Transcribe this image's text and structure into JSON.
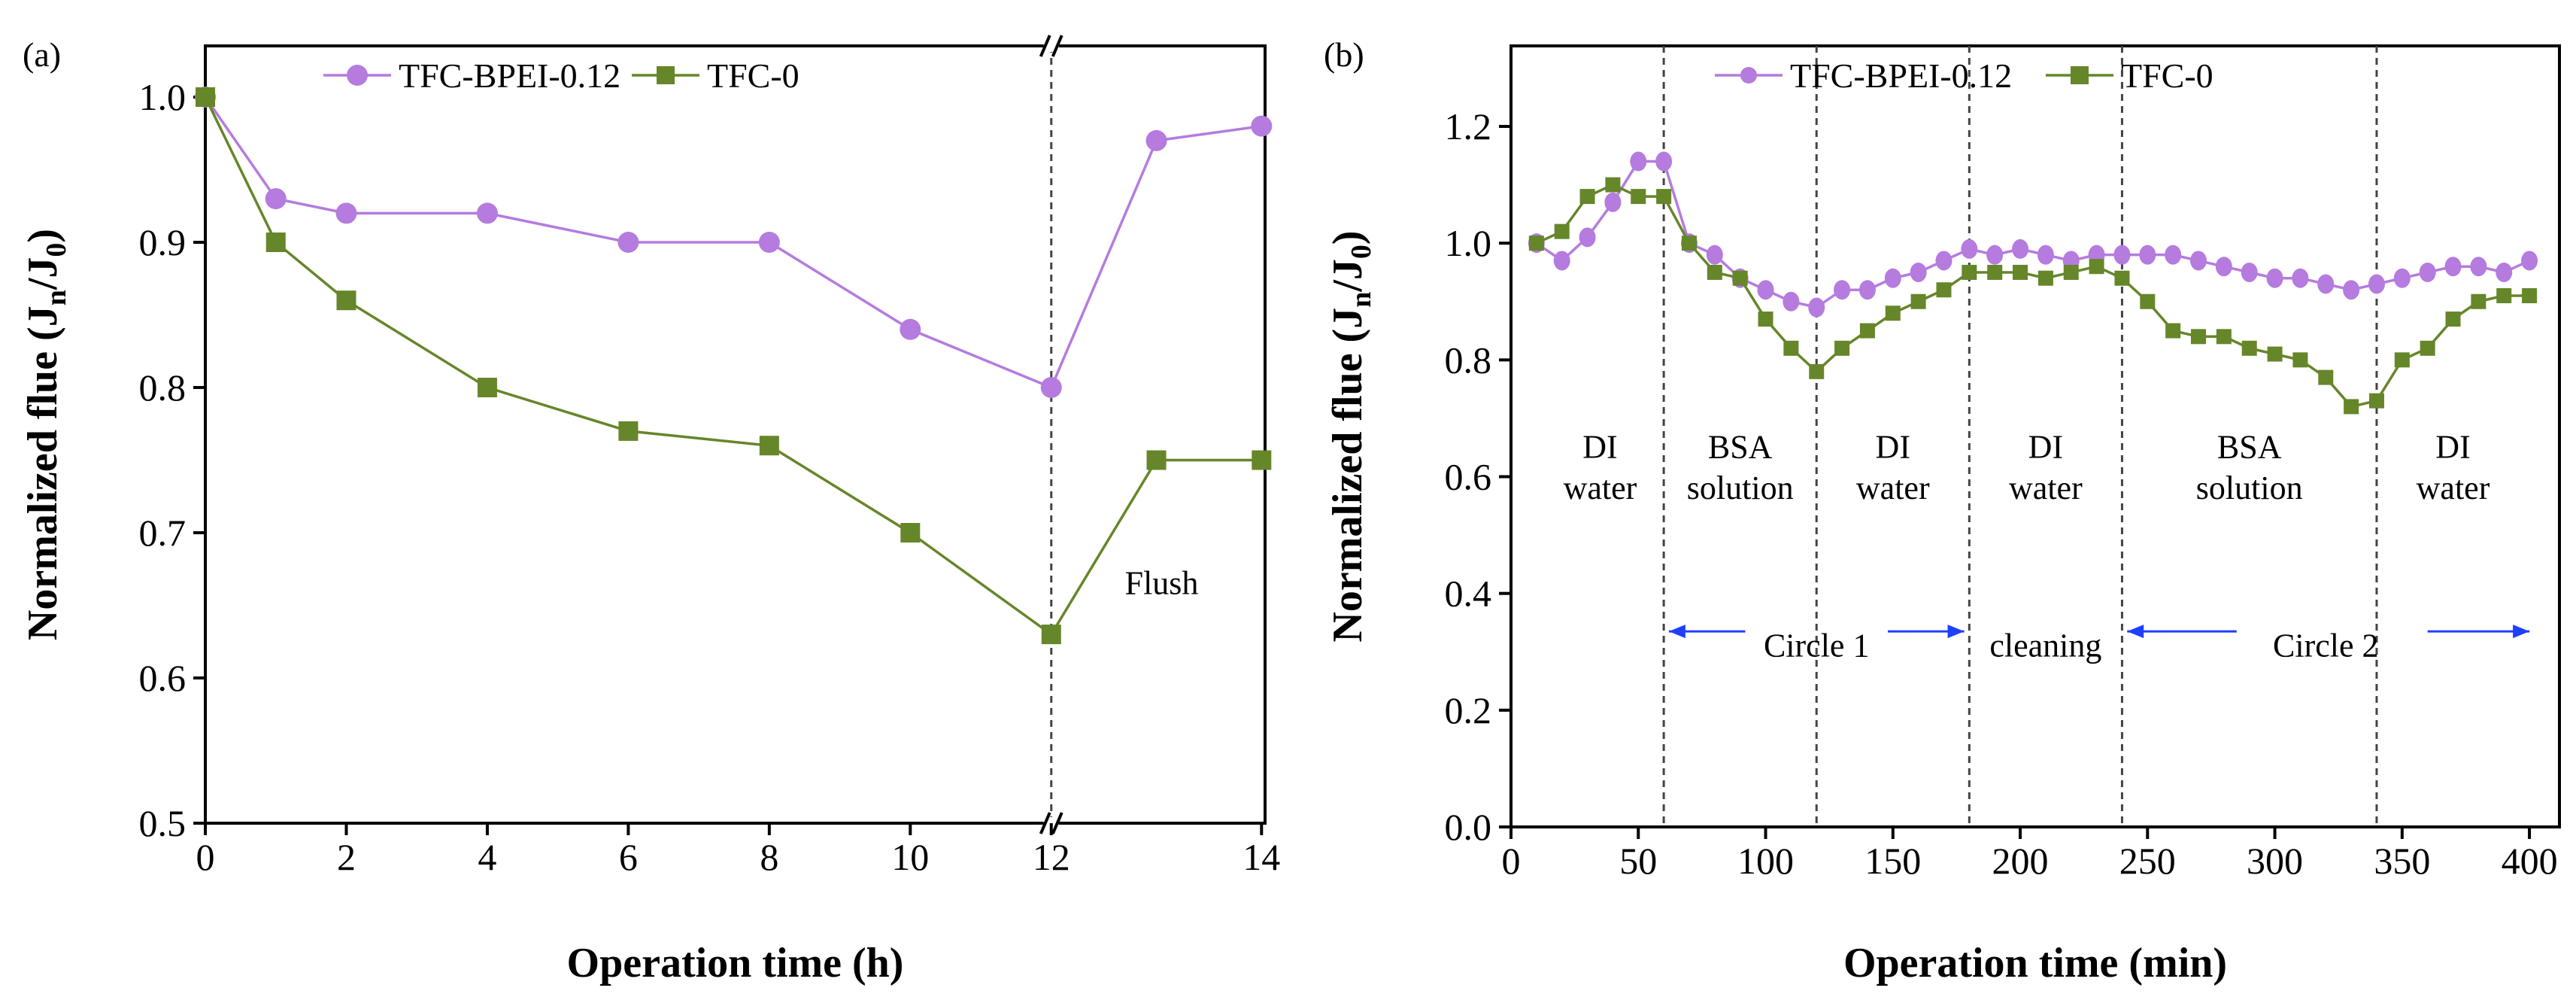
{
  "chart_data": [
    {
      "panel_label": "(a)",
      "type": "line",
      "xlabel": "Operation time (h)",
      "ylabel_main": "Normalized flue (J",
      "ylabel_sub1": "n",
      "ylabel_mid": "/J",
      "ylabel_sub2": "0",
      "ylabel_end": ")",
      "xlim": [
        0,
        14
      ],
      "ylim": [
        0.5,
        1.05
      ],
      "axis_break_at": 12,
      "xticks": [
        0,
        2,
        4,
        6,
        8,
        10,
        12,
        14
      ],
      "yticks": [
        0.5,
        0.6,
        0.7,
        0.8,
        0.9,
        1.0
      ],
      "ytick_labels": [
        "0.5",
        "0.6",
        "0.7",
        "0.8",
        "0.9",
        "1.0"
      ],
      "legend_placement": "top-center",
      "series": [
        {
          "name": "TFC-BPEI-0.12",
          "color": "#b57bde",
          "marker": "circle",
          "x": [
            0,
            1,
            2,
            4,
            6,
            8,
            10,
            12,
            13,
            14
          ],
          "y": [
            1.0,
            0.93,
            0.92,
            0.92,
            0.9,
            0.9,
            0.84,
            0.8,
            0.97,
            0.98
          ]
        },
        {
          "name": "TFC-0",
          "color": "#66862a",
          "marker": "square",
          "x": [
            0,
            1,
            2,
            4,
            6,
            8,
            10,
            12,
            13,
            14
          ],
          "y": [
            1.0,
            0.9,
            0.86,
            0.8,
            0.77,
            0.76,
            0.7,
            0.63,
            0.75,
            0.75
          ]
        }
      ],
      "vlines": [
        12
      ],
      "annotations": [
        {
          "text": "Flush",
          "x": 13.05,
          "y": 0.665
        }
      ]
    },
    {
      "panel_label": "(b)",
      "type": "line",
      "xlabel": "Operation time (min)",
      "ylabel_main": "Normalized flue (J",
      "ylabel_sub1": "n",
      "ylabel_mid": "/J",
      "ylabel_sub2": "0",
      "ylabel_end": ")",
      "xlim": [
        0,
        410
      ],
      "ylim": [
        0,
        1.3
      ],
      "xticks": [
        0,
        50,
        100,
        150,
        200,
        250,
        300,
        350,
        400
      ],
      "yticks": [
        0,
        0.2,
        0.4,
        0.6,
        0.8,
        1.0,
        1.2
      ],
      "ytick_labels": [
        "0.0",
        "0.2",
        "0.4",
        "0.6",
        "0.8",
        "1.0",
        "1.2"
      ],
      "legend_placement": "top-center",
      "series": [
        {
          "name": "TFC-BPEI-0.12",
          "color": "#b57bde",
          "marker": "circle",
          "x": [
            10,
            20,
            30,
            40,
            50,
            60,
            70,
            80,
            90,
            100,
            110,
            120,
            130,
            140,
            150,
            160,
            170,
            180,
            190,
            200,
            210,
            220,
            230,
            240,
            250,
            260,
            270,
            280,
            290,
            300,
            310,
            320,
            330,
            340,
            350,
            360,
            370,
            380,
            390,
            400
          ],
          "y": [
            1.0,
            0.97,
            1.01,
            1.07,
            1.14,
            1.14,
            1.0,
            0.98,
            0.94,
            0.92,
            0.9,
            0.89,
            0.92,
            0.92,
            0.94,
            0.95,
            0.97,
            0.99,
            0.98,
            0.99,
            0.98,
            0.97,
            0.98,
            0.98,
            0.98,
            0.98,
            0.97,
            0.96,
            0.95,
            0.94,
            0.94,
            0.93,
            0.92,
            0.93,
            0.94,
            0.95,
            0.96,
            0.96,
            0.95,
            0.97
          ]
        },
        {
          "name": "TFC-0",
          "color": "#66862a",
          "marker": "square",
          "x": [
            10,
            20,
            30,
            40,
            50,
            60,
            70,
            80,
            90,
            100,
            110,
            120,
            130,
            140,
            150,
            160,
            170,
            180,
            190,
            200,
            210,
            220,
            230,
            240,
            250,
            260,
            270,
            280,
            290,
            300,
            310,
            320,
            330,
            340,
            350,
            360,
            370,
            380,
            390,
            400
          ],
          "y": [
            1.0,
            1.02,
            1.08,
            1.1,
            1.08,
            1.08,
            1.0,
            0.95,
            0.94,
            0.87,
            0.82,
            0.78,
            0.82,
            0.85,
            0.88,
            0.9,
            0.92,
            0.95,
            0.95,
            0.95,
            0.94,
            0.95,
            0.96,
            0.94,
            0.9,
            0.85,
            0.84,
            0.84,
            0.82,
            0.81,
            0.8,
            0.77,
            0.72,
            0.73,
            0.8,
            0.82,
            0.87,
            0.9,
            0.91,
            0.91
          ]
        }
      ],
      "vlines": [
        60,
        120,
        180,
        240,
        340
      ],
      "annotations": [
        {
          "text": "DI",
          "x": 35,
          "y": 0.65
        },
        {
          "text": "water",
          "x": 35,
          "y": 0.58
        },
        {
          "text": "BSA",
          "x": 90,
          "y": 0.65
        },
        {
          "text": "solution",
          "x": 90,
          "y": 0.58
        },
        {
          "text": "DI",
          "x": 150,
          "y": 0.65
        },
        {
          "text": "water",
          "x": 150,
          "y": 0.58
        },
        {
          "text": "DI",
          "x": 210,
          "y": 0.65
        },
        {
          "text": "water",
          "x": 210,
          "y": 0.58
        },
        {
          "text": "BSA",
          "x": 290,
          "y": 0.65
        },
        {
          "text": "solution",
          "x": 290,
          "y": 0.58
        },
        {
          "text": "DI",
          "x": 370,
          "y": 0.65
        },
        {
          "text": "water",
          "x": 370,
          "y": 0.58
        },
        {
          "text": "Circle 1",
          "x": 120,
          "y": 0.31
        },
        {
          "text": "cleaning",
          "x": 210,
          "y": 0.31
        },
        {
          "text": "Circle 2",
          "x": 320,
          "y": 0.31
        }
      ],
      "arrows": [
        {
          "from": 62,
          "to": 92,
          "y": 0.335
        },
        {
          "from": 148,
          "to": 178,
          "y": 0.335
        },
        {
          "from": 242,
          "to": 285,
          "y": 0.335
        },
        {
          "from": 360,
          "to": 400,
          "y": 0.335
        }
      ],
      "arrow_color": "#1f3fff"
    }
  ]
}
